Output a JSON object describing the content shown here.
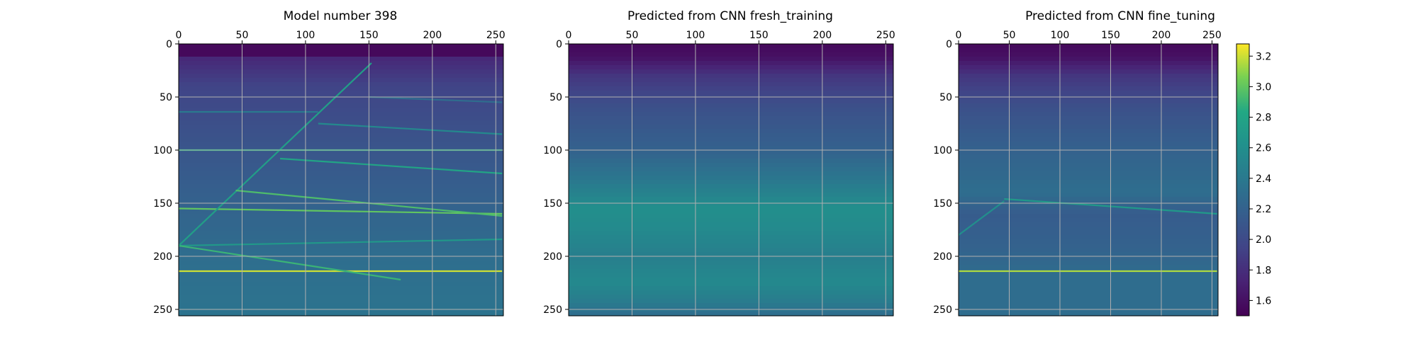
{
  "chart_data": [
    {
      "type": "heatmap",
      "title": "Model number 398",
      "xlabel": "",
      "ylabel": "",
      "xlim": [
        0,
        256
      ],
      "ylim": [
        256,
        0
      ],
      "xticks": [
        0,
        50,
        100,
        150,
        200,
        250
      ],
      "yticks": [
        0,
        50,
        100,
        150,
        200,
        250
      ],
      "grid": true,
      "x_axis_position": "top",
      "colormap": "viridis",
      "background_profile": [
        [
          0,
          1.55
        ],
        [
          10,
          1.55
        ],
        [
          12,
          1.75
        ],
        [
          40,
          1.95
        ],
        [
          80,
          2.05
        ],
        [
          150,
          2.2
        ],
        [
          200,
          2.3
        ],
        [
          255,
          2.35
        ]
      ],
      "features": [
        {
          "kind": "line",
          "x": [
            0,
            255
          ],
          "y": [
            214,
            214
          ],
          "value": 3.2
        },
        {
          "kind": "line",
          "x": [
            0,
            255
          ],
          "y": [
            100,
            100
          ],
          "value": 2.85
        },
        {
          "kind": "line",
          "x": [
            0,
            255
          ],
          "y": [
            155,
            160
          ],
          "value": 3.0
        },
        {
          "kind": "line",
          "x": [
            0,
            255
          ],
          "y": [
            190,
            184
          ],
          "value": 2.7
        },
        {
          "kind": "line",
          "x": [
            0,
            175
          ],
          "y": [
            190,
            222
          ],
          "value": 2.9
        },
        {
          "kind": "line",
          "x": [
            0,
            152
          ],
          "y": [
            190,
            18
          ],
          "value": 2.75
        },
        {
          "kind": "line",
          "x": [
            45,
            255
          ],
          "y": [
            138,
            162
          ],
          "value": 2.95
        },
        {
          "kind": "line",
          "x": [
            80,
            255
          ],
          "y": [
            108,
            122
          ],
          "value": 2.8
        },
        {
          "kind": "line",
          "x": [
            110,
            255
          ],
          "y": [
            75,
            85
          ],
          "value": 2.55
        },
        {
          "kind": "line",
          "x": [
            0,
            110
          ],
          "y": [
            64,
            64
          ],
          "value": 2.4
        },
        {
          "kind": "line",
          "x": [
            150,
            255
          ],
          "y": [
            50,
            55
          ],
          "value": 2.3
        }
      ]
    },
    {
      "type": "heatmap",
      "title": "Predicted from CNN fresh_training",
      "xlabel": "",
      "ylabel": "",
      "xlim": [
        0,
        256
      ],
      "ylim": [
        256,
        0
      ],
      "xticks": [
        0,
        50,
        100,
        150,
        200,
        250
      ],
      "yticks": [
        0,
        50,
        100,
        150,
        200,
        250
      ],
      "grid": true,
      "x_axis_position": "top",
      "colormap": "viridis",
      "background_profile": [
        [
          0,
          1.55
        ],
        [
          12,
          1.6
        ],
        [
          30,
          1.85
        ],
        [
          60,
          2.05
        ],
        [
          100,
          2.2
        ],
        [
          130,
          2.4
        ],
        [
          155,
          2.6
        ],
        [
          175,
          2.55
        ],
        [
          200,
          2.45
        ],
        [
          225,
          2.55
        ],
        [
          245,
          2.4
        ],
        [
          255,
          2.3
        ]
      ],
      "features": []
    },
    {
      "type": "heatmap",
      "title": "Predicted from CNN fine_tuning",
      "xlabel": "",
      "ylabel": "",
      "xlim": [
        0,
        256
      ],
      "ylim": [
        256,
        0
      ],
      "xticks": [
        0,
        50,
        100,
        150,
        200,
        250
      ],
      "yticks": [
        0,
        50,
        100,
        150,
        200,
        250
      ],
      "grid": true,
      "x_axis_position": "top",
      "colormap": "viridis",
      "background_profile": [
        [
          0,
          1.55
        ],
        [
          12,
          1.6
        ],
        [
          30,
          1.85
        ],
        [
          60,
          2.05
        ],
        [
          100,
          2.2
        ],
        [
          140,
          2.3
        ],
        [
          160,
          2.15
        ],
        [
          190,
          2.2
        ],
        [
          220,
          2.3
        ],
        [
          255,
          2.3
        ]
      ],
      "features": [
        {
          "kind": "line",
          "x": [
            0,
            255
          ],
          "y": [
            214,
            214
          ],
          "value": 3.15
        },
        {
          "kind": "line",
          "x": [
            45,
            255
          ],
          "y": [
            146,
            160
          ],
          "value": 2.7
        },
        {
          "kind": "line",
          "x": [
            0,
            45
          ],
          "y": [
            180,
            148
          ],
          "value": 2.6
        }
      ]
    }
  ],
  "colorbar": {
    "min": 1.5,
    "max": 3.28,
    "ticks": [
      "1.6",
      "1.8",
      "2.0",
      "2.2",
      "2.4",
      "2.6",
      "2.8",
      "3.0",
      "3.2"
    ],
    "colormap": "viridis"
  }
}
